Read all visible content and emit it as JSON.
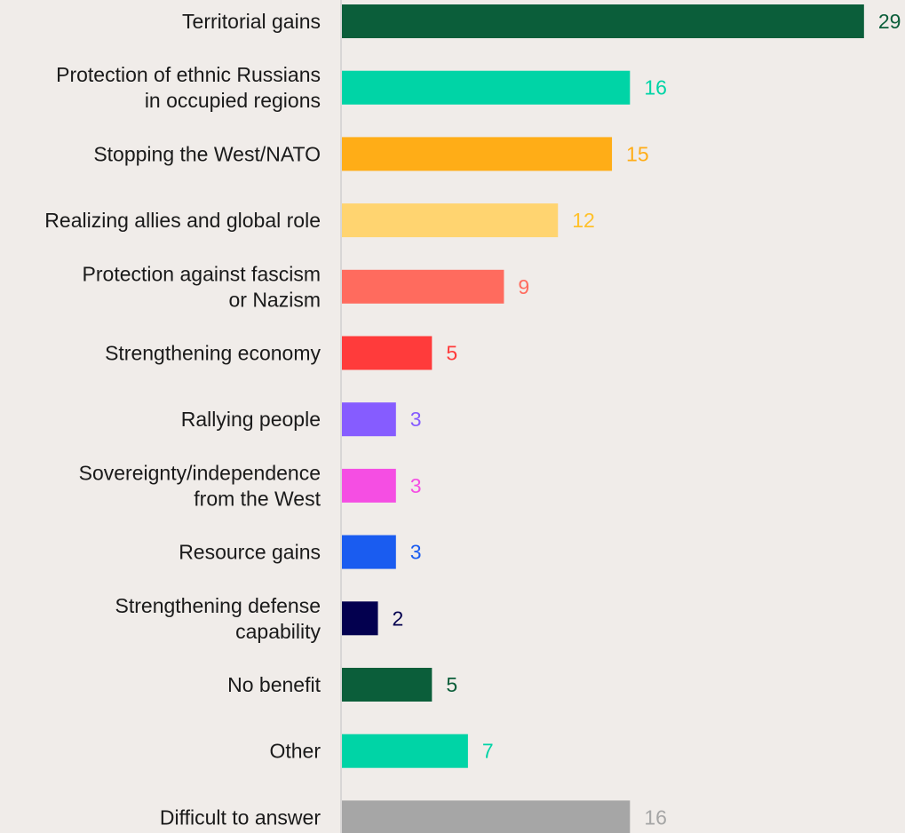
{
  "chart_data": {
    "type": "bar",
    "orientation": "horizontal",
    "title": "",
    "xlabel": "",
    "ylabel": "",
    "xlim": [
      0,
      30
    ],
    "grid": false,
    "legend": "none",
    "categories": [
      "Territorial gains",
      "Protection of ethnic Russians in occupied regions",
      "Stopping the West/NATO",
      "Realizing allies and global role",
      "Protection against fascism or Nazism",
      "Strengthening economy",
      "Rallying people",
      "Sovereignty/independence from the West",
      "Resource gains",
      "Strengthening defense capability",
      "No benefit",
      "Other",
      "Difficult to answer"
    ],
    "category_lines": [
      [
        "Territorial gains"
      ],
      [
        "Protection of ethnic Russians",
        "in occupied regions"
      ],
      [
        "Stopping the West/NATO"
      ],
      [
        "Realizing allies and global role"
      ],
      [
        "Protection against fascism",
        "or Nazism"
      ],
      [
        "Strengthening economy"
      ],
      [
        "Rallying people"
      ],
      [
        "Sovereignty/independence",
        "from the West"
      ],
      [
        "Resource gains"
      ],
      [
        "Strengthening defense",
        "capability"
      ],
      [
        "No benefit"
      ],
      [
        "Other"
      ],
      [
        "Difficult to answer"
      ]
    ],
    "values": [
      29,
      16,
      15,
      12,
      9,
      5,
      3,
      3,
      3,
      2,
      5,
      7,
      16
    ],
    "bar_colors": [
      "#0b5e3a",
      "#00d4a6",
      "#ffad17",
      "#ffd470",
      "#ff6b5e",
      "#ff3b3b",
      "#865cff",
      "#f54ee3",
      "#1a5cf0",
      "#03004f",
      "#0b5e3a",
      "#00d4a6",
      "#a6a6a6"
    ],
    "label_colors": [
      "#0b5e3a",
      "#00d4a6",
      "#ffad17",
      "#ffc12b",
      "#ff6b5e",
      "#ff3b3b",
      "#865cff",
      "#f54ee3",
      "#1a5cf0",
      "#03004f",
      "#0b5e3a",
      "#00d4a6",
      "#a6a6a6"
    ],
    "axis_color": "#cfcfcf"
  }
}
